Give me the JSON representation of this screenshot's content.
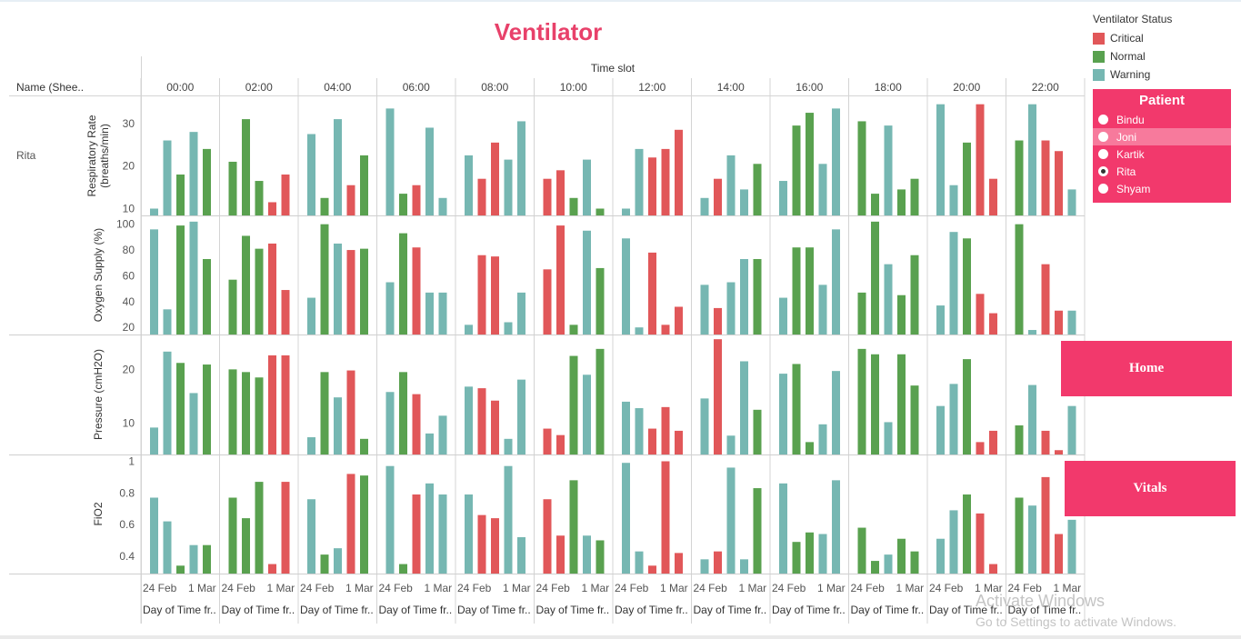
{
  "title": "Ventilator",
  "row_header": "Name (Shee..",
  "row_value": "Rita",
  "column_header": "Time slot",
  "x_axis_title": "Day of Time fr..",
  "x_tick_labels": [
    "24 Feb",
    "1 Mar"
  ],
  "legend": {
    "title": "Ventilator Status",
    "items": [
      {
        "label": "Critical",
        "color": "#e15759"
      },
      {
        "label": "Normal",
        "color": "#59a14f"
      },
      {
        "label": "Warning",
        "color": "#76b7b2"
      }
    ]
  },
  "patient_filter": {
    "title": "Patient",
    "options": [
      "Bindu",
      "Joni",
      "Kartik",
      "Rita",
      "Shyam"
    ],
    "selected": "Rita",
    "highlighted": "Joni"
  },
  "buttons": {
    "home": "Home",
    "vitals": "Vitals"
  },
  "watermark": {
    "line1": "Activate Windows",
    "line2": "Go to Settings to activate Windows."
  },
  "chart_data": {
    "type": "bar",
    "time_slots": [
      "00:00",
      "02:00",
      "04:00",
      "06:00",
      "08:00",
      "10:00",
      "12:00",
      "14:00",
      "16:00",
      "18:00",
      "20:00",
      "22:00"
    ],
    "bars_per_panel": 6,
    "status_keys": {
      "C": "Critical",
      "N": "Normal",
      "W": "Warning"
    },
    "metrics": [
      {
        "label": "Respiratory Rate (breaths/min)",
        "label_lines": [
          "Respiratory Rate",
          "(breaths/min)"
        ],
        "ylim": [
          8.4,
          35.5
        ],
        "ticks": [
          10,
          20,
          30
        ],
        "panels": [
          {
            "values": [
              10,
              26,
              18,
              28,
              24,
              null
            ],
            "status": [
              "W",
              "W",
              "N",
              "W",
              "N",
              null
            ]
          },
          {
            "values": [
              21,
              31,
              16.5,
              11.5,
              18,
              null
            ],
            "status": [
              "N",
              "N",
              "N",
              "C",
              "C",
              null
            ]
          },
          {
            "values": [
              27.5,
              12.5,
              31,
              15.5,
              22.5,
              null
            ],
            "status": [
              "W",
              "N",
              "W",
              "C",
              "N",
              null
            ]
          },
          {
            "values": [
              33.5,
              13.5,
              15.5,
              29,
              12.5,
              null
            ],
            "status": [
              "W",
              "N",
              "C",
              "W",
              "W",
              null
            ]
          },
          {
            "values": [
              22.5,
              17,
              25.5,
              21.5,
              30.5,
              null
            ],
            "status": [
              "W",
              "C",
              "C",
              "W",
              "W",
              null
            ]
          },
          {
            "values": [
              17,
              19,
              12.5,
              21.5,
              10,
              null
            ],
            "status": [
              "C",
              "C",
              "N",
              "W",
              "N",
              null
            ]
          },
          {
            "values": [
              10,
              24,
              22,
              24,
              28.5,
              null
            ],
            "status": [
              "W",
              "W",
              "C",
              "C",
              "C",
              null
            ]
          },
          {
            "values": [
              12.5,
              17,
              22.5,
              14.5,
              20.5,
              null
            ],
            "status": [
              "W",
              "C",
              "W",
              "W",
              "N",
              null
            ]
          },
          {
            "values": [
              16.5,
              29.5,
              32.5,
              20.5,
              33.5,
              null
            ],
            "status": [
              "W",
              "N",
              "N",
              "W",
              "W",
              null
            ]
          },
          {
            "values": [
              30.5,
              13.5,
              29.5,
              14.5,
              17,
              null
            ],
            "status": [
              "N",
              "N",
              "W",
              "N",
              "N",
              null
            ]
          },
          {
            "values": [
              34.5,
              15.5,
              25.5,
              34.5,
              17,
              null
            ],
            "status": [
              "W",
              "W",
              "N",
              "C",
              "C",
              null
            ]
          },
          {
            "values": [
              26,
              34.5,
              26,
              23.5,
              14.5,
              null
            ],
            "status": [
              "N",
              "W",
              "C",
              "C",
              "W",
              null
            ]
          }
        ]
      },
      {
        "label": "Oxygen Supply (%)",
        "label_lines": [
          "Oxygen Supply (%)"
        ],
        "ylim": [
          14.5,
          104
        ],
        "ticks": [
          20,
          40,
          60,
          80,
          100
        ],
        "panels": [
          {
            "values": [
              96,
              34,
              99,
              102,
              73,
              null
            ],
            "status": [
              "W",
              "W",
              "N",
              "W",
              "N",
              null
            ]
          },
          {
            "values": [
              57,
              91,
              81,
              85,
              49,
              null
            ],
            "status": [
              "N",
              "N",
              "N",
              "C",
              "C",
              null
            ]
          },
          {
            "values": [
              43,
              100,
              85,
              80,
              81,
              null
            ],
            "status": [
              "W",
              "N",
              "W",
              "C",
              "N",
              null
            ]
          },
          {
            "values": [
              55,
              93,
              82,
              47,
              47,
              null
            ],
            "status": [
              "W",
              "N",
              "C",
              "W",
              "W",
              null
            ]
          },
          {
            "values": [
              22,
              76,
              75,
              24,
              47,
              null
            ],
            "status": [
              "W",
              "C",
              "C",
              "W",
              "W",
              null
            ]
          },
          {
            "values": [
              65,
              99,
              22,
              95,
              66,
              null
            ],
            "status": [
              "C",
              "C",
              "N",
              "W",
              "N",
              null
            ]
          },
          {
            "values": [
              89,
              20,
              78,
              22,
              36,
              null
            ],
            "status": [
              "W",
              "W",
              "C",
              "C",
              "C",
              null
            ]
          },
          {
            "values": [
              53,
              35,
              55,
              73,
              73,
              null
            ],
            "status": [
              "W",
              "C",
              "W",
              "W",
              "N",
              null
            ]
          },
          {
            "values": [
              43,
              82,
              82,
              53,
              96,
              null
            ],
            "status": [
              "W",
              "N",
              "N",
              "W",
              "W",
              null
            ]
          },
          {
            "values": [
              47,
              102,
              69,
              45,
              76,
              null
            ],
            "status": [
              "N",
              "N",
              "W",
              "N",
              "N",
              null
            ]
          },
          {
            "values": [
              37,
              94,
              89,
              46,
              31,
              null
            ],
            "status": [
              "W",
              "W",
              "N",
              "C",
              "C",
              null
            ]
          },
          {
            "values": [
              100,
              18,
              69,
              33,
              33,
              null
            ],
            "status": [
              "N",
              "W",
              "C",
              "C",
              "W",
              null
            ]
          }
        ]
      },
      {
        "label": "Pressure (cmH2O)",
        "label_lines": [
          "Pressure (cmH2O)"
        ],
        "ylim": [
          4.2,
          25.8
        ],
        "ticks": [
          10,
          20
        ],
        "panels": [
          {
            "values": [
              9.2,
              23.3,
              21.2,
              15.6,
              20.9,
              null
            ],
            "status": [
              "W",
              "W",
              "N",
              "W",
              "N",
              null
            ]
          },
          {
            "values": [
              20,
              19.5,
              18.5,
              22.6,
              22.6,
              null
            ],
            "status": [
              "N",
              "N",
              "N",
              "C",
              "C",
              null
            ]
          },
          {
            "values": [
              7.4,
              19.5,
              14.8,
              19.8,
              7.1,
              null
            ],
            "status": [
              "W",
              "N",
              "W",
              "C",
              "N",
              null
            ]
          },
          {
            "values": [
              15.8,
              19.5,
              15.4,
              8.1,
              11.4,
              null
            ],
            "status": [
              "W",
              "N",
              "C",
              "W",
              "W",
              null
            ]
          },
          {
            "values": [
              16.8,
              16.5,
              14.2,
              7.1,
              18.1,
              null
            ],
            "status": [
              "W",
              "C",
              "C",
              "W",
              "W",
              null
            ]
          },
          {
            "values": [
              9.0,
              7.8,
              22.5,
              19.0,
              23.8,
              null
            ],
            "status": [
              "C",
              "C",
              "N",
              "W",
              "N",
              null
            ]
          },
          {
            "values": [
              14.0,
              12.8,
              9.0,
              13.0,
              8.6,
              null
            ],
            "status": [
              "W",
              "W",
              "C",
              "C",
              "C",
              null
            ]
          },
          {
            "values": [
              14.6,
              25.6,
              7.7,
              21.5,
              12.5,
              null
            ],
            "status": [
              "W",
              "C",
              "W",
              "W",
              "N",
              null
            ]
          },
          {
            "values": [
              19.2,
              21.0,
              6.5,
              9.8,
              19.7,
              null
            ],
            "status": [
              "W",
              "N",
              "N",
              "W",
              "W",
              null
            ]
          },
          {
            "values": [
              23.8,
              22.8,
              10.2,
              22.8,
              17.0,
              null
            ],
            "status": [
              "N",
              "N",
              "W",
              "N",
              "N",
              null
            ]
          },
          {
            "values": [
              13.2,
              17.3,
              21.9,
              6.5,
              8.6,
              null
            ],
            "status": [
              "W",
              "W",
              "N",
              "C",
              "C",
              null
            ]
          },
          {
            "values": [
              9.6,
              17.1,
              8.6,
              5.0,
              13.2,
              null
            ],
            "status": [
              "N",
              "W",
              "C",
              "C",
              "W",
              null
            ]
          }
        ]
      },
      {
        "label": "FiO2",
        "label_lines": [
          "FiO2"
        ],
        "ylim": [
          0.29,
          1.02
        ],
        "ticks": [
          0.4,
          0.6,
          0.8,
          1.0
        ],
        "panels": [
          {
            "values": [
              0.77,
              0.62,
              0.34,
              0.47,
              0.47,
              null
            ],
            "status": [
              "W",
              "W",
              "N",
              "W",
              "N",
              null
            ]
          },
          {
            "values": [
              0.77,
              0.64,
              0.87,
              0.35,
              0.87,
              null
            ],
            "status": [
              "N",
              "N",
              "N",
              "C",
              "C",
              null
            ]
          },
          {
            "values": [
              0.76,
              0.41,
              0.45,
              0.92,
              0.91,
              null
            ],
            "status": [
              "W",
              "N",
              "W",
              "C",
              "N",
              null
            ]
          },
          {
            "values": [
              0.97,
              0.35,
              0.79,
              0.86,
              0.79,
              null
            ],
            "status": [
              "W",
              "N",
              "C",
              "W",
              "W",
              null
            ]
          },
          {
            "values": [
              0.79,
              0.66,
              0.64,
              0.97,
              0.52,
              null
            ],
            "status": [
              "W",
              "C",
              "C",
              "W",
              "W",
              null
            ]
          },
          {
            "values": [
              0.76,
              0.53,
              0.88,
              0.53,
              0.5,
              null
            ],
            "status": [
              "C",
              "C",
              "N",
              "W",
              "N",
              null
            ]
          },
          {
            "values": [
              0.99,
              0.43,
              0.34,
              1.0,
              0.42,
              null
            ],
            "status": [
              "W",
              "W",
              "C",
              "C",
              "C",
              null
            ]
          },
          {
            "values": [
              0.38,
              0.43,
              0.96,
              0.38,
              0.83,
              null
            ],
            "status": [
              "W",
              "C",
              "W",
              "W",
              "N",
              null
            ]
          },
          {
            "values": [
              0.86,
              0.49,
              0.55,
              0.54,
              0.88,
              null
            ],
            "status": [
              "W",
              "N",
              "N",
              "W",
              "W",
              null
            ]
          },
          {
            "values": [
              0.58,
              0.37,
              0.41,
              0.51,
              0.43,
              null
            ],
            "status": [
              "N",
              "N",
              "W",
              "N",
              "N",
              null
            ]
          },
          {
            "values": [
              0.51,
              0.69,
              0.79,
              0.67,
              0.35,
              null
            ],
            "status": [
              "W",
              "W",
              "N",
              "C",
              "C",
              null
            ]
          },
          {
            "values": [
              0.77,
              0.72,
              0.9,
              0.54,
              0.63,
              null
            ],
            "status": [
              "N",
              "W",
              "C",
              "C",
              "W",
              null
            ]
          }
        ]
      }
    ]
  }
}
